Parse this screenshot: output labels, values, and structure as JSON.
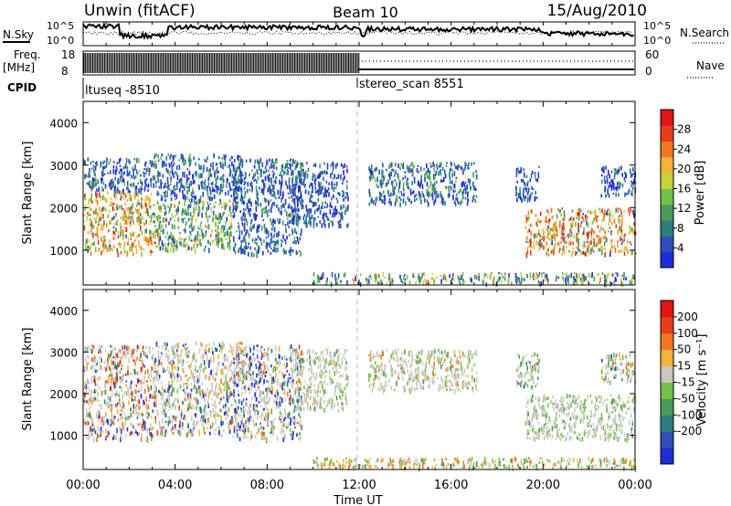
{
  "header": {
    "station": "Unwin (fitACF)",
    "beam": "Beam 10",
    "date": "15/Aug/2010"
  },
  "time_axis": {
    "ticks": [
      "00:00",
      "04:00",
      "08:00",
      "12:00",
      "16:00",
      "20:00",
      "00:00"
    ],
    "label": "Time UT",
    "range_hours": [
      0,
      24
    ],
    "mode_change_hour": 12
  },
  "top_panels": {
    "nsky_label": "N.Sky",
    "nsky_top": "10^5",
    "nsky_bottom": "10^0",
    "nsearch_label": "N.Search",
    "freq_label": "Freq.",
    "freq_unit": "[MHz]",
    "freq_top": "18",
    "freq_bottom": "8",
    "nave_label": "Nave",
    "nave_top": "60",
    "nave_bottom": "0",
    "cpid_label": "CPID",
    "cpid_left": "ltuseq -8510",
    "cpid_right": "stereo_scan 8551"
  },
  "power_panel": {
    "ylabel": "Slant Range [km]",
    "yticks": [
      "1000",
      "2000",
      "3000",
      "4000"
    ],
    "colorbar_label": "Power [dB]",
    "colorbar_ticks": [
      "4",
      "8",
      "12",
      "16",
      "20",
      "24",
      "28"
    ],
    "colors": [
      "#1f2bd8",
      "#2e4fb8",
      "#2b7e7e",
      "#4a9a5a",
      "#74c04a",
      "#c9d23c",
      "#f2b23a",
      "#f07820",
      "#e83e1c",
      "#e21414"
    ]
  },
  "velocity_panel": {
    "ylabel": "Slant Range [km]",
    "yticks": [
      "1000",
      "2000",
      "3000",
      "4000"
    ],
    "colorbar_label": "Velocity [m s⁻¹]",
    "colorbar_ticks": [
      "200",
      "100",
      "50",
      "15",
      "-15",
      "-50",
      "-100",
      "-200"
    ],
    "colors": [
      "#1f2bd8",
      "#2e4fb8",
      "#2b7e7e",
      "#4a9a5a",
      "#74c04a",
      "#c8c8c0",
      "#f2b23a",
      "#f07820",
      "#e83e1c",
      "#e21414"
    ]
  },
  "chart_data": {
    "type": "heatmap",
    "x_range_hours": [
      0,
      24
    ],
    "y_range_km": [
      180,
      4500
    ],
    "power_regions": [
      {
        "t": [
          0.0,
          3.0
        ],
        "r": [
          900,
          2400
        ],
        "weights": [
          0,
          1,
          2,
          4,
          6,
          8,
          8,
          6,
          4,
          2
        ]
      },
      {
        "t": [
          0.0,
          3.0
        ],
        "r": [
          2400,
          3200
        ],
        "weights": [
          3,
          8,
          4,
          2,
          1,
          0,
          0,
          0,
          0,
          0
        ]
      },
      {
        "t": [
          3.0,
          6.5
        ],
        "r": [
          1000,
          2200
        ],
        "weights": [
          2,
          3,
          4,
          6,
          6,
          4,
          2,
          1,
          0,
          0
        ]
      },
      {
        "t": [
          3.0,
          7.0
        ],
        "r": [
          2200,
          3300
        ],
        "weights": [
          4,
          7,
          5,
          3,
          1,
          0,
          0,
          0,
          0,
          0
        ]
      },
      {
        "t": [
          6.5,
          9.5
        ],
        "r": [
          900,
          3200
        ],
        "weights": [
          5,
          8,
          5,
          3,
          1,
          0,
          0,
          0,
          0,
          0
        ]
      },
      {
        "t": [
          9.0,
          11.5
        ],
        "r": [
          1600,
          3100
        ],
        "weights": [
          5,
          7,
          4,
          2,
          0,
          0,
          0,
          0,
          0,
          0
        ]
      },
      {
        "t": [
          12.4,
          17.1
        ],
        "r": [
          2100,
          3100
        ],
        "weights": [
          4,
          6,
          5,
          4,
          2,
          0,
          0,
          0,
          0,
          0
        ]
      },
      {
        "t": [
          18.8,
          19.8
        ],
        "r": [
          2200,
          3000
        ],
        "weights": [
          6,
          5,
          3,
          1,
          0,
          0,
          0,
          0,
          0,
          0
        ]
      },
      {
        "t": [
          19.2,
          24.0
        ],
        "r": [
          900,
          2000
        ],
        "weights": [
          1,
          1,
          2,
          3,
          4,
          5,
          6,
          8,
          6,
          3
        ]
      },
      {
        "t": [
          22.5,
          24.0
        ],
        "r": [
          2300,
          3000
        ],
        "weights": [
          6,
          5,
          3,
          1,
          0,
          0,
          0,
          0,
          0,
          0
        ]
      },
      {
        "t": [
          10.0,
          24.0
        ],
        "r": [
          200,
          450
        ],
        "weights": [
          2,
          3,
          4,
          4,
          3,
          2,
          2,
          1,
          0,
          0
        ]
      }
    ],
    "velocity_regions": [
      {
        "t": [
          0.0,
          3.0
        ],
        "r": [
          900,
          2400
        ],
        "weights": [
          2,
          1,
          1,
          1,
          1,
          10,
          3,
          2,
          2,
          1
        ]
      },
      {
        "t": [
          0.0,
          3.0
        ],
        "r": [
          2400,
          3200
        ],
        "weights": [
          1,
          1,
          1,
          1,
          1,
          8,
          2,
          2,
          1,
          1
        ]
      },
      {
        "t": [
          3.0,
          6.5
        ],
        "r": [
          1000,
          2200
        ],
        "weights": [
          2,
          1,
          1,
          1,
          2,
          10,
          3,
          2,
          1,
          0
        ]
      },
      {
        "t": [
          3.0,
          7.0
        ],
        "r": [
          2200,
          3300
        ],
        "weights": [
          1,
          1,
          0,
          1,
          1,
          8,
          2,
          1,
          0,
          0
        ]
      },
      {
        "t": [
          6.5,
          9.5
        ],
        "r": [
          900,
          3200
        ],
        "weights": [
          3,
          2,
          1,
          1,
          1,
          10,
          2,
          1,
          1,
          0
        ]
      },
      {
        "t": [
          9.0,
          11.5
        ],
        "r": [
          1600,
          3100
        ],
        "weights": [
          0,
          0,
          0,
          1,
          2,
          10,
          1,
          0,
          0,
          0
        ]
      },
      {
        "t": [
          12.4,
          17.1
        ],
        "r": [
          2100,
          3100
        ],
        "weights": [
          0,
          0,
          0,
          1,
          3,
          10,
          1,
          1,
          0,
          0
        ]
      },
      {
        "t": [
          18.8,
          19.8
        ],
        "r": [
          2200,
          3000
        ],
        "weights": [
          1,
          0,
          0,
          3,
          4,
          6,
          0,
          0,
          1,
          0
        ]
      },
      {
        "t": [
          19.2,
          24.0
        ],
        "r": [
          900,
          2000
        ],
        "weights": [
          0,
          0,
          0,
          1,
          3,
          10,
          0,
          0,
          0,
          0
        ]
      },
      {
        "t": [
          22.5,
          24.0
        ],
        "r": [
          2300,
          3000
        ],
        "weights": [
          1,
          0,
          0,
          2,
          4,
          6,
          1,
          1,
          1,
          0
        ]
      },
      {
        "t": [
          10.0,
          24.0
        ],
        "r": [
          200,
          450
        ],
        "weights": [
          0,
          0,
          0,
          2,
          5,
          2,
          4,
          3,
          0,
          0
        ]
      }
    ]
  }
}
